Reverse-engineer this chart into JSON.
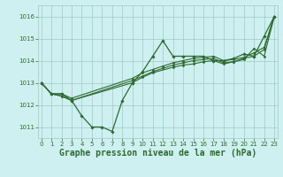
{
  "series": [
    {
      "x": [
        0,
        1,
        2,
        3,
        4,
        5,
        6,
        7,
        8,
        9,
        10,
        11,
        12,
        13,
        14,
        15,
        16,
        17,
        18,
        19,
        20,
        21,
        22,
        23
      ],
      "y": [
        1013.0,
        1012.5,
        1012.5,
        1012.2,
        1011.5,
        1011.0,
        1011.0,
        1010.8,
        1012.2,
        1013.0,
        1013.5,
        1014.2,
        1014.9,
        1014.2,
        1014.2,
        1014.2,
        1014.2,
        1014.0,
        1014.0,
        1014.1,
        1014.3,
        1014.2,
        1015.1,
        1016.0
      ],
      "color": "#2d6a2d",
      "linewidth": 0.9,
      "marker": "D",
      "markersize": 1.8
    },
    {
      "x": [
        0,
        1,
        2,
        3,
        9,
        10,
        11,
        12,
        13,
        14,
        15,
        16,
        17,
        18,
        19,
        20,
        21,
        22,
        23
      ],
      "y": [
        1013.0,
        1012.5,
        1012.5,
        1012.3,
        1013.2,
        1013.45,
        1013.6,
        1013.75,
        1013.9,
        1014.0,
        1014.1,
        1014.15,
        1014.2,
        1014.0,
        1014.05,
        1014.15,
        1014.35,
        1014.6,
        1016.0
      ],
      "color": "#2d6a2d",
      "linewidth": 0.8,
      "marker": "D",
      "markersize": 1.5
    },
    {
      "x": [
        0,
        1,
        2,
        3,
        9,
        10,
        11,
        12,
        13,
        14,
        15,
        16,
        17,
        18,
        19,
        20,
        21,
        22,
        23
      ],
      "y": [
        1013.0,
        1012.5,
        1012.4,
        1012.2,
        1013.1,
        1013.3,
        1013.5,
        1013.65,
        1013.8,
        1013.9,
        1014.0,
        1014.05,
        1014.1,
        1013.9,
        1013.95,
        1014.1,
        1014.2,
        1014.5,
        1016.0
      ],
      "color": "#2d6a2d",
      "linewidth": 0.8,
      "marker": "D",
      "markersize": 1.5
    },
    {
      "x": [
        0,
        1,
        2,
        3,
        9,
        10,
        11,
        13,
        14,
        15,
        16,
        17,
        18,
        19,
        20,
        21,
        22,
        23
      ],
      "y": [
        1013.0,
        1012.5,
        1012.4,
        1012.2,
        1013.0,
        1013.25,
        1013.45,
        1013.7,
        1013.8,
        1013.85,
        1013.95,
        1014.0,
        1013.85,
        1013.95,
        1014.05,
        1014.55,
        1014.2,
        1016.0
      ],
      "color": "#2d6a2d",
      "linewidth": 0.8,
      "marker": "D",
      "markersize": 1.5
    }
  ],
  "xlim": [
    -0.3,
    23.3
  ],
  "ylim": [
    1010.5,
    1016.5
  ],
  "yticks": [
    1011,
    1012,
    1013,
    1014,
    1015,
    1016
  ],
  "xticks": [
    0,
    1,
    2,
    3,
    4,
    5,
    6,
    7,
    8,
    9,
    10,
    11,
    12,
    13,
    14,
    15,
    16,
    17,
    18,
    19,
    20,
    21,
    22,
    23
  ],
  "xlabel": "Graphe pression niveau de la mer (hPa)",
  "background_color": "#cff0f0",
  "grid_color": "#a0c8c8",
  "line_color": "#2d6a2d",
  "tick_color": "#2d6a2d",
  "label_color": "#2d6a2d",
  "tick_fontsize": 5.0,
  "xlabel_fontsize": 7.0
}
